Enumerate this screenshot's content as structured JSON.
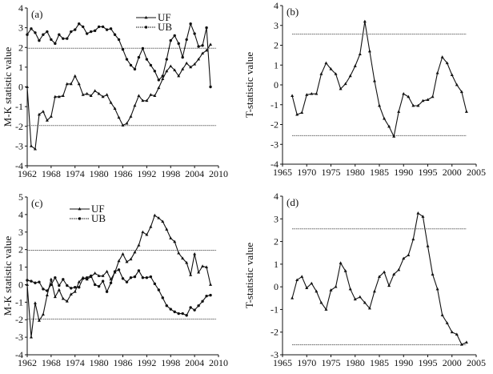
{
  "chart_data": [
    {
      "panel": "(a)",
      "type": "line",
      "ylabel": "M-K  statistic value",
      "xlim": [
        1962,
        2010
      ],
      "ylim": [
        -4,
        4
      ],
      "xticks": [
        1962,
        1968,
        1974,
        1980,
        1986,
        1992,
        1998,
        2004,
        2010
      ],
      "yticks": [
        -4,
        -3,
        -2,
        -1,
        0,
        1,
        2,
        3,
        4
      ],
      "thresholds": [
        1.96,
        -1.96
      ],
      "legend": {
        "position": "top-center",
        "entries": [
          "UF",
          "UB"
        ]
      },
      "x_start": 1962,
      "series": [
        {
          "name": "UF",
          "marker": "triangle",
          "values": [
            0,
            -3.0,
            -3.15,
            -1.4,
            -1.25,
            -1.7,
            -1.5,
            -0.5,
            -0.5,
            -0.45,
            0.15,
            0.15,
            0.55,
            0.15,
            -0.4,
            -0.35,
            -0.45,
            -0.2,
            -0.35,
            -0.5,
            -0.4,
            -0.8,
            -1.1,
            -1.55,
            -1.95,
            -1.85,
            -1.5,
            -0.95,
            -0.45,
            -0.7,
            -0.7,
            -0.4,
            -0.45,
            -0.05,
            0.4,
            0.8,
            1.05,
            0.85,
            0.55,
            0.9,
            1.2,
            1.0,
            1.15,
            1.4,
            1.7,
            1.85,
            2.15
          ]
        },
        {
          "name": "UB",
          "marker": "circle",
          "values": [
            2.65,
            2.95,
            2.75,
            2.35,
            2.65,
            2.8,
            2.4,
            2.2,
            2.65,
            2.45,
            2.45,
            2.8,
            2.9,
            3.2,
            3.05,
            2.7,
            2.8,
            2.85,
            3.05,
            3.05,
            2.9,
            2.95,
            2.65,
            2.4,
            1.9,
            1.4,
            1.1,
            0.9,
            1.5,
            1.95,
            1.4,
            1.1,
            0.8,
            0.35,
            0.55,
            1.4,
            2.35,
            2.6,
            2.2,
            1.5,
            2.4,
            3.2,
            2.7,
            2.05,
            2.1,
            3.0,
            0
          ]
        }
      ]
    },
    {
      "panel": "(b)",
      "type": "line",
      "ylabel": "T-statistic value",
      "xlim": [
        1965,
        2005
      ],
      "ylim": [
        -4,
        4
      ],
      "xticks": [
        1965,
        1970,
        1975,
        1980,
        1985,
        1990,
        1995,
        2000,
        2005
      ],
      "yticks": [
        -4,
        -3,
        -2,
        -1,
        0,
        1,
        2,
        3,
        4
      ],
      "thresholds": [
        2.56,
        -2.56
      ],
      "x_start": 1967,
      "series": [
        {
          "name": "T",
          "marker": "triangle",
          "values": [
            -0.55,
            -1.5,
            -1.4,
            -0.5,
            -0.45,
            -0.45,
            0.55,
            1.1,
            0.8,
            0.55,
            -0.2,
            0.05,
            0.45,
            0.95,
            1.55,
            3.2,
            1.7,
            0.2,
            -1.05,
            -1.7,
            -2.1,
            -2.6,
            -1.35,
            -0.45,
            -0.6,
            -1.05,
            -1.05,
            -0.8,
            -0.75,
            -0.6,
            0.6,
            1.4,
            1.1,
            0.5,
            0.0,
            -0.35,
            -1.35
          ]
        }
      ]
    },
    {
      "panel": "(c)",
      "type": "line",
      "ylabel": "M-K statistic value",
      "xlim": [
        1962,
        2010
      ],
      "ylim": [
        -4,
        5
      ],
      "xticks": [
        1962,
        1968,
        1974,
        1980,
        1986,
        1992,
        1998,
        2004,
        2010
      ],
      "yticks": [
        -4,
        -3,
        -2,
        -1,
        0,
        1,
        2,
        3,
        4,
        5
      ],
      "thresholds": [
        1.96,
        -1.96
      ],
      "legend": {
        "position": "top-left",
        "entries": [
          "UF",
          "UB"
        ]
      },
      "x_start": 1962,
      "series": [
        {
          "name": "UF",
          "marker": "triangle",
          "values": [
            0,
            -3.0,
            -1.05,
            -2.05,
            -1.7,
            -0.6,
            0.3,
            -0.7,
            -0.3,
            -0.8,
            -0.95,
            -0.55,
            -0.4,
            0.15,
            0.4,
            0.3,
            0.45,
            0.65,
            0.5,
            0.5,
            0.75,
            0.3,
            0.7,
            1.35,
            1.75,
            1.3,
            1.45,
            1.85,
            2.25,
            3.0,
            2.85,
            3.3,
            3.95,
            3.8,
            3.6,
            3.15,
            2.65,
            2.45,
            1.8,
            1.5,
            1.25,
            0.55,
            1.75,
            0.7,
            1.05,
            1.0,
            0.0
          ]
        },
        {
          "name": "UB",
          "marker": "circle",
          "values": [
            0.25,
            0.2,
            0.1,
            0.15,
            -0.25,
            -0.35,
            0.0,
            0.4,
            -0.05,
            0.3,
            -0.05,
            -0.2,
            -0.15,
            -0.15,
            0.35,
            0.4,
            0.5,
            0.0,
            -0.1,
            0.2,
            -0.4,
            0.1,
            0.75,
            0.85,
            0.35,
            0.15,
            0.4,
            0.45,
            0.8,
            0.4,
            0.4,
            0.45,
            0.05,
            -0.3,
            -0.75,
            -1.2,
            -1.4,
            -1.55,
            -1.65,
            -1.65,
            -1.75,
            -1.3,
            -1.45,
            -1.2,
            -0.95,
            -0.65,
            -0.6
          ]
        }
      ]
    },
    {
      "panel": "(d)",
      "type": "line",
      "ylabel": "T-statistic value",
      "xlim": [
        1965,
        2005
      ],
      "ylim": [
        -3,
        4
      ],
      "xticks": [
        1965,
        1970,
        1975,
        1980,
        1985,
        1990,
        1995,
        2000,
        2005
      ],
      "yticks": [
        -3,
        -2,
        -1,
        0,
        1,
        2,
        3,
        4
      ],
      "thresholds": [
        2.56,
        -2.56
      ],
      "x_start": 1967,
      "series": [
        {
          "name": "T",
          "marker": "triangle",
          "values": [
            -0.5,
            0.3,
            0.45,
            -0.05,
            0.15,
            -0.2,
            -0.7,
            -1.0,
            -0.15,
            0.0,
            1.05,
            0.7,
            -0.1,
            -0.55,
            -0.45,
            -0.7,
            -0.95,
            -0.2,
            0.45,
            0.65,
            0.05,
            0.55,
            0.75,
            1.25,
            1.4,
            2.1,
            3.25,
            3.1,
            1.8,
            0.55,
            -0.1,
            -1.25,
            -1.6,
            -2.0,
            -2.1,
            -2.55,
            -2.45
          ]
        }
      ]
    }
  ]
}
